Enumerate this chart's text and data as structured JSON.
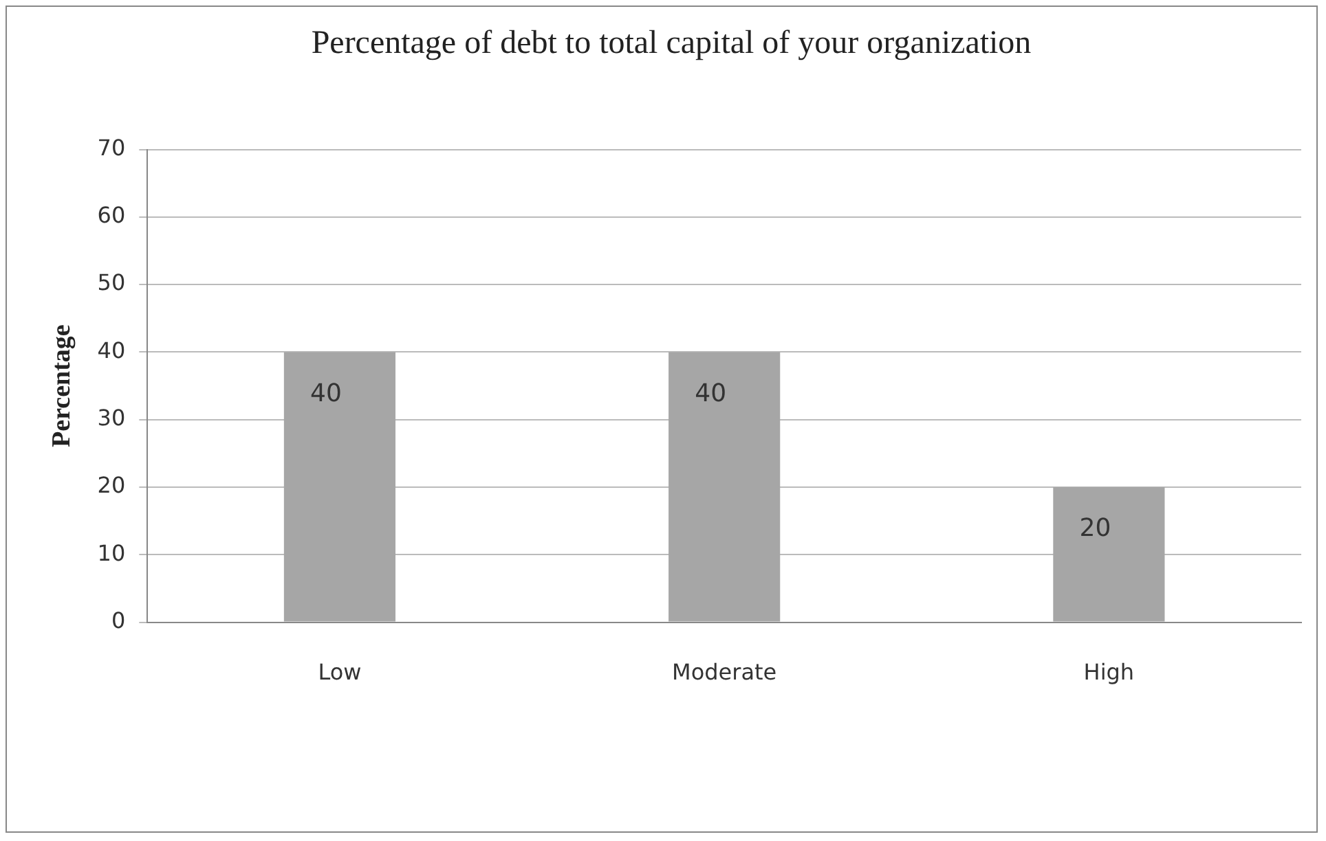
{
  "chart_data": {
    "type": "bar",
    "title": "Percentage of debt to total capital of your organization",
    "ylabel": "Percentage",
    "categories": [
      "Low",
      "Moderate",
      "High"
    ],
    "values": [
      40,
      40,
      20
    ],
    "color": "#a6a6a6",
    "ylim": [
      0,
      70
    ],
    "yticks": [
      0,
      10,
      20,
      30,
      40,
      50,
      60,
      70
    ],
    "grid": "y",
    "data_labels": true
  }
}
